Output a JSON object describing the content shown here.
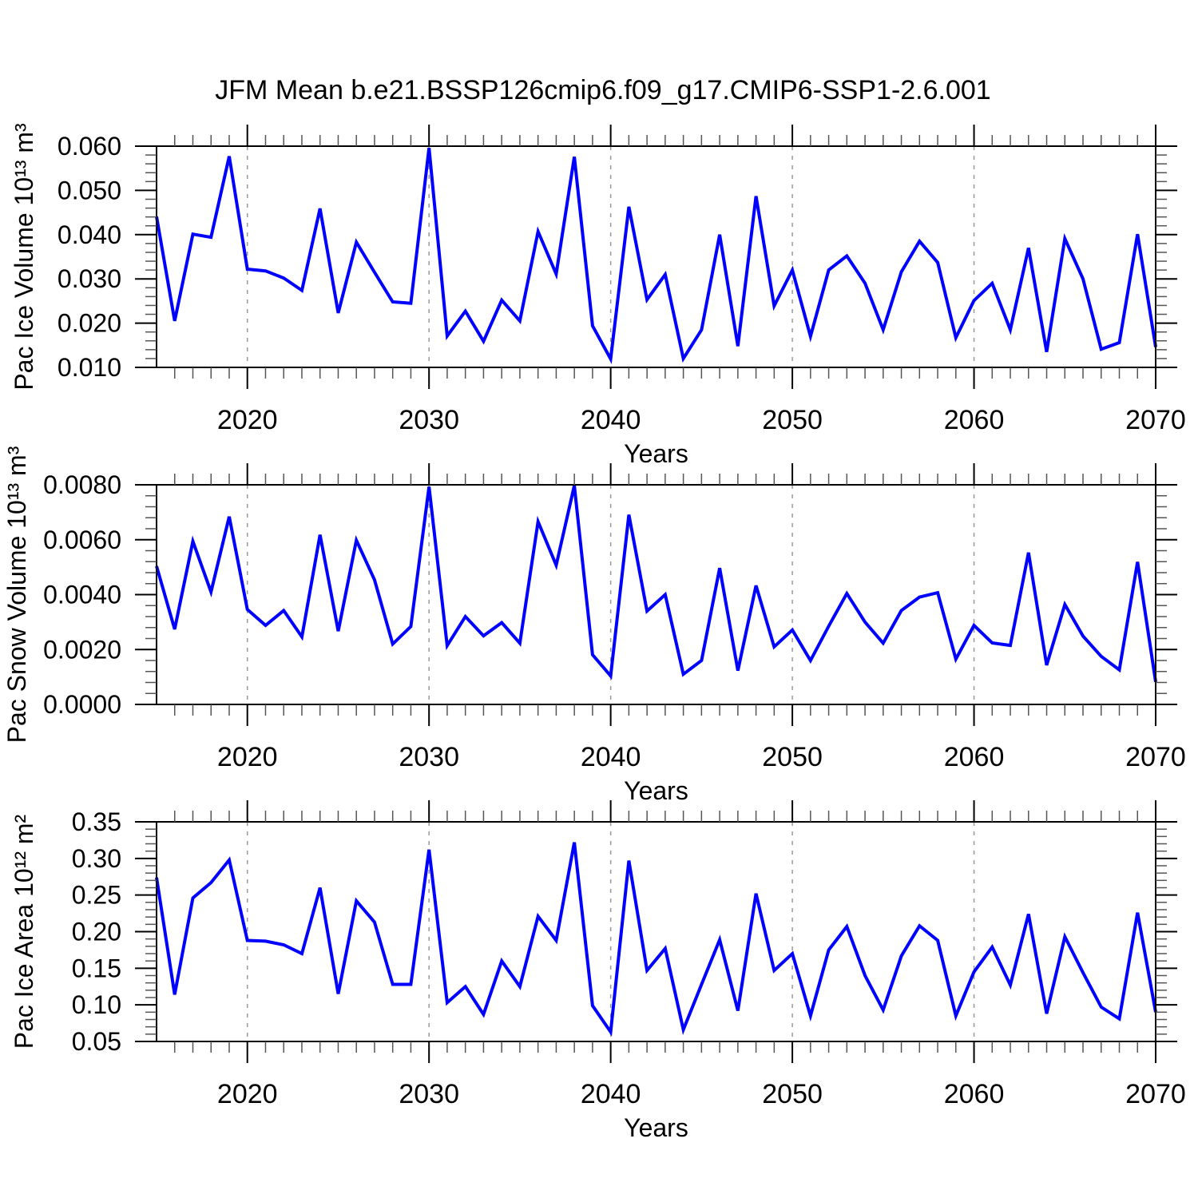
{
  "title": "JFM Mean b.e21.BSSP126cmip6.f09_g17.CMIP6-SSP1-2.6.001",
  "colors": {
    "line": "#0000ff",
    "grid": "#999999",
    "frame": "#000000",
    "minor_tick": "#555555"
  },
  "years": [
    2015,
    2016,
    2017,
    2018,
    2019,
    2020,
    2021,
    2022,
    2023,
    2024,
    2025,
    2026,
    2027,
    2028,
    2029,
    2030,
    2031,
    2032,
    2033,
    2034,
    2035,
    2036,
    2037,
    2038,
    2039,
    2040,
    2041,
    2042,
    2043,
    2044,
    2045,
    2046,
    2047,
    2048,
    2049,
    2050,
    2051,
    2052,
    2053,
    2054,
    2055,
    2056,
    2057,
    2058,
    2059,
    2060,
    2061,
    2062,
    2063,
    2064,
    2065,
    2066,
    2067,
    2068,
    2069,
    2070
  ],
  "chart_data": [
    {
      "type": "line",
      "id": "pac-ice-volume",
      "ylabel": "Pac Ice Volume 10¹³ m³",
      "xlabel": "Years",
      "xlim": [
        2015,
        2070
      ],
      "ylim": [
        0.01,
        0.06
      ],
      "ytick_step": 0.01,
      "y_decimals": 3,
      "y_minor_div": 5,
      "xticks": [
        2020,
        2030,
        2040,
        2050,
        2060,
        2070
      ],
      "grid_years": [
        2020,
        2030,
        2040,
        2050,
        2060
      ],
      "values": [
        0.0441,
        0.0205,
        0.0401,
        0.0394,
        0.0577,
        0.0322,
        0.0318,
        0.0302,
        0.0274,
        0.0459,
        0.0223,
        0.0383,
        0.0315,
        0.0248,
        0.0245,
        0.0596,
        0.0171,
        0.0227,
        0.0159,
        0.0252,
        0.0205,
        0.0407,
        0.0311,
        0.0576,
        0.0194,
        0.0119,
        0.0463,
        0.0253,
        0.031,
        0.012,
        0.0185,
        0.04,
        0.0148,
        0.0487,
        0.0239,
        0.032,
        0.017,
        0.032,
        0.0352,
        0.029,
        0.0185,
        0.0316,
        0.0385,
        0.0337,
        0.0167,
        0.0251,
        0.029,
        0.0185,
        0.037,
        0.0135,
        0.0391,
        0.03,
        0.0141,
        0.0156,
        0.0401,
        0.0146
      ]
    },
    {
      "type": "line",
      "id": "pac-snow-volume",
      "ylabel": "Pac Snow Volume 10¹³ m³",
      "xlabel": "Years",
      "xlim": [
        2015,
        2070
      ],
      "ylim": [
        0.0,
        0.008
      ],
      "ytick_step": 0.002,
      "y_decimals": 4,
      "y_minor_div": 5,
      "xticks": [
        2020,
        2030,
        2040,
        2050,
        2060,
        2070
      ],
      "grid_years": [
        2020,
        2030,
        2040,
        2050,
        2060
      ],
      "values": [
        0.00504,
        0.00274,
        0.00594,
        0.0041,
        0.00684,
        0.00346,
        0.00288,
        0.00342,
        0.00246,
        0.00618,
        0.00267,
        0.00598,
        0.00454,
        0.0022,
        0.00284,
        0.00793,
        0.00214,
        0.0032,
        0.0025,
        0.00298,
        0.00223,
        0.00666,
        0.00507,
        0.00797,
        0.00181,
        0.00104,
        0.00691,
        0.0034,
        0.004,
        0.0011,
        0.0016,
        0.00497,
        0.00123,
        0.00433,
        0.0021,
        0.00271,
        0.0016,
        0.00285,
        0.00404,
        0.003,
        0.00223,
        0.00342,
        0.00391,
        0.00407,
        0.00165,
        0.00288,
        0.00224,
        0.00215,
        0.00553,
        0.00143,
        0.00364,
        0.00249,
        0.00175,
        0.00126,
        0.00519,
        0.00082
      ]
    },
    {
      "type": "line",
      "id": "pac-ice-area",
      "ylabel": "Pac Ice Area 10¹² m²",
      "xlabel": "Years",
      "xlim": [
        2015,
        2070
      ],
      "ylim": [
        0.05,
        0.35
      ],
      "ytick_step": 0.05,
      "y_decimals": 2,
      "y_minor_div": 5,
      "xticks": [
        2020,
        2030,
        2040,
        2050,
        2060,
        2070
      ],
      "grid_years": [
        2020,
        2030,
        2040,
        2050,
        2060
      ],
      "values": [
        0.274,
        0.114,
        0.246,
        0.267,
        0.298,
        0.188,
        0.187,
        0.182,
        0.17,
        0.26,
        0.115,
        0.242,
        0.213,
        0.128,
        0.128,
        0.312,
        0.103,
        0.125,
        0.087,
        0.16,
        0.125,
        0.221,
        0.188,
        0.322,
        0.099,
        0.063,
        0.297,
        0.147,
        0.177,
        0.066,
        0.128,
        0.189,
        0.092,
        0.252,
        0.147,
        0.17,
        0.085,
        0.175,
        0.207,
        0.14,
        0.093,
        0.167,
        0.208,
        0.188,
        0.085,
        0.145,
        0.179,
        0.127,
        0.224,
        0.088,
        0.193,
        0.144,
        0.097,
        0.081,
        0.226,
        0.09
      ]
    }
  ]
}
